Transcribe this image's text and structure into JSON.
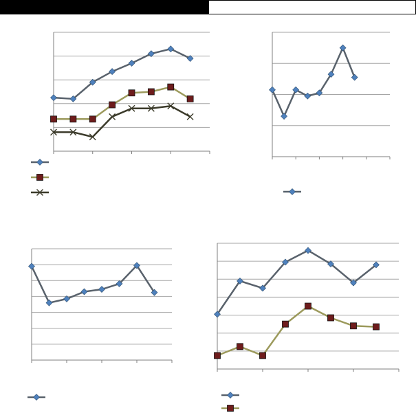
{
  "chart_data": [
    {
      "type": "line",
      "categories": [
        null,
        null,
        null,
        null,
        null,
        null,
        null,
        null
      ],
      "ylim": [
        0,
        5
      ],
      "yticks": [
        0,
        1,
        2,
        3,
        4,
        5
      ],
      "grid": true,
      "legend": "bottom",
      "series": [
        {
          "color": "#59626c",
          "marker_color": "#4f81bd",
          "marker": "diamond",
          "values": [
            2.25,
            2.2,
            2.9,
            3.35,
            3.7,
            4.1,
            4.3,
            3.9
          ]
        },
        {
          "color": "#9c9a5c",
          "marker_color": "#6e1c1c",
          "marker": "square",
          "values": [
            1.35,
            1.35,
            1.35,
            1.95,
            2.45,
            2.5,
            2.7,
            2.2
          ]
        },
        {
          "color": "#3b3a2a",
          "marker_color": "#3b3a2a",
          "marker": "x",
          "values": [
            0.8,
            0.8,
            0.6,
            1.45,
            1.8,
            1.8,
            1.9,
            1.45
          ]
        }
      ]
    },
    {
      "type": "line",
      "categories": [
        null,
        null,
        null,
        null,
        null,
        null,
        null,
        null,
        null,
        null
      ],
      "ylim": [
        0,
        4
      ],
      "yticks": [
        0,
        1,
        2,
        3,
        4
      ],
      "grid": true,
      "legend": "bottom",
      "series": [
        {
          "color": "#59626c",
          "marker_color": "#4f81bd",
          "marker": "diamond",
          "values": [
            2.15,
            1.3,
            2.15,
            1.95,
            2.05,
            2.65,
            3.5,
            2.55,
            null,
            null
          ]
        }
      ]
    },
    {
      "type": "line",
      "categories": [
        null,
        null,
        null,
        null,
        null,
        null,
        null,
        null
      ],
      "ylim": [
        0,
        7
      ],
      "yticks": [
        0,
        1,
        2,
        3,
        4,
        5,
        6,
        7
      ],
      "grid": true,
      "legend": "bottom",
      "series": [
        {
          "color": "#59626c",
          "marker_color": "#4f81bd",
          "marker": "diamond",
          "values": [
            5.9,
            3.6,
            3.85,
            4.3,
            4.45,
            4.8,
            5.95,
            4.25
          ]
        }
      ]
    },
    {
      "type": "line",
      "categories": [
        null,
        null,
        null,
        null,
        null,
        null,
        null,
        null
      ],
      "ylim": [
        0,
        7
      ],
      "yticks": [
        0,
        1,
        2,
        3,
        4,
        5,
        6,
        7
      ],
      "grid": true,
      "legend": "bottom",
      "series": [
        {
          "color": "#59626c",
          "marker_color": "#4f81bd",
          "marker": "diamond",
          "values": [
            3.05,
            4.9,
            4.5,
            5.95,
            6.6,
            5.85,
            4.8,
            5.8
          ]
        },
        {
          "color": "#9c9a5c",
          "marker_color": "#6e1c1c",
          "marker": "square",
          "values": [
            0.75,
            1.25,
            0.75,
            2.5,
            3.5,
            2.85,
            2.4,
            2.35
          ]
        }
      ]
    }
  ]
}
